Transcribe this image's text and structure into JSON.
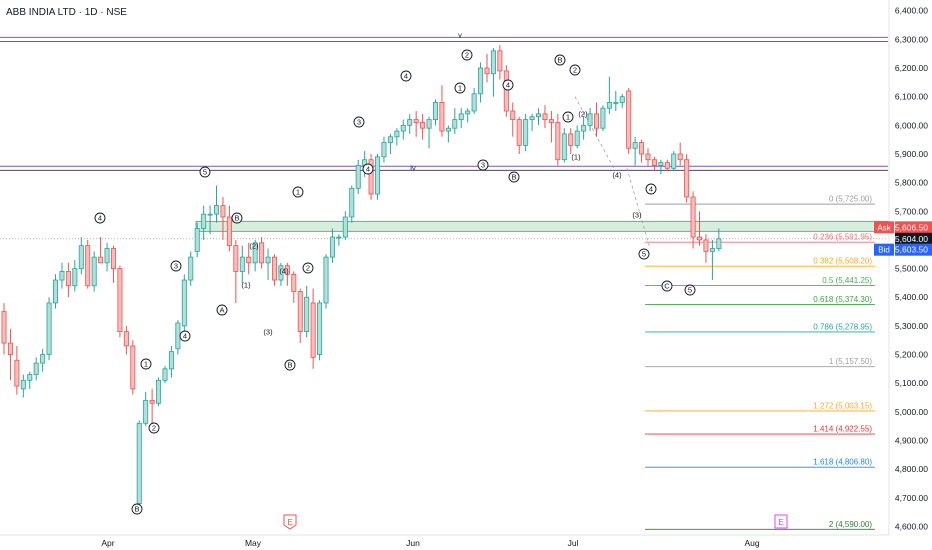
{
  "header": {
    "title": "ABB INDIA LTD · 1D · NSE"
  },
  "colors": {
    "up": "#26a69a",
    "up_fill": "#b2dfdb",
    "down": "#ef5350",
    "down_fill": "#f7bcbc",
    "resistance": "#7e57c2",
    "zone": "#b8e0c4"
  },
  "chart_data": {
    "type": "candlestick",
    "title": "ABB INDIA LTD · 1D · NSE",
    "yaxis": {
      "min": 4560,
      "max": 6420,
      "ticks": [
        "6,400.00",
        "6,300.00",
        "6,200.00",
        "6,100.00",
        "6,000.00",
        "5,900.00",
        "5,800.00",
        "5,700.00",
        "5,600.00",
        "5,500.00",
        "5,400.00",
        "5,300.00",
        "5,200.00",
        "5,100.00",
        "5,000.00",
        "4,900.00",
        "4,800.00",
        "4,700.00",
        "4,600.00"
      ]
    },
    "xaxis": {
      "labels": [
        "Apr",
        "May",
        "Jun",
        "Jul",
        "Aug"
      ]
    },
    "candles": [
      [
        5350,
        5380,
        5200,
        5240
      ],
      [
        5240,
        5290,
        5110,
        5200
      ],
      [
        5180,
        5230,
        5060,
        5090
      ],
      [
        5080,
        5130,
        5050,
        5110
      ],
      [
        5110,
        5140,
        5080,
        5130
      ],
      [
        5130,
        5190,
        5110,
        5170
      ],
      [
        5170,
        5220,
        5140,
        5200
      ],
      [
        5200,
        5400,
        5180,
        5380
      ],
      [
        5380,
        5480,
        5360,
        5460
      ],
      [
        5460,
        5520,
        5430,
        5490
      ],
      [
        5490,
        5520,
        5400,
        5440
      ],
      [
        5440,
        5530,
        5420,
        5500
      ],
      [
        5500,
        5610,
        5480,
        5580
      ],
      [
        5580,
        5600,
        5430,
        5440
      ],
      [
        5440,
        5560,
        5420,
        5540
      ],
      [
        5540,
        5610,
        5520,
        5520
      ],
      [
        5520,
        5590,
        5490,
        5570
      ],
      [
        5570,
        5580,
        5450,
        5500
      ],
      [
        5500,
        5510,
        5260,
        5280
      ],
      [
        5280,
        5300,
        5200,
        5230
      ],
      [
        5230,
        5250,
        5060,
        5080
      ],
      [
        4680,
        4970,
        4670,
        4960
      ],
      [
        4960,
        5070,
        4950,
        5040
      ],
      [
        5040,
        5080,
        4960,
        5030
      ],
      [
        5030,
        5120,
        5020,
        5110
      ],
      [
        5110,
        5160,
        5100,
        5150
      ],
      [
        5150,
        5230,
        5120,
        5210
      ],
      [
        5220,
        5320,
        5200,
        5310
      ],
      [
        5300,
        5480,
        5280,
        5460
      ],
      [
        5460,
        5560,
        5440,
        5540
      ],
      [
        5560,
        5660,
        5540,
        5640
      ],
      [
        5640,
        5720,
        5600,
        5690
      ],
      [
        5690,
        5720,
        5620,
        5690
      ],
      [
        5690,
        5790,
        5660,
        5720
      ],
      [
        5720,
        5750,
        5600,
        5680
      ],
      [
        5680,
        5720,
        5560,
        5580
      ],
      [
        5580,
        5600,
        5380,
        5490
      ],
      [
        5490,
        5580,
        5450,
        5540
      ],
      [
        5540,
        5590,
        5480,
        5520
      ],
      [
        5520,
        5600,
        5490,
        5590
      ],
      [
        5590,
        5610,
        5500,
        5520
      ],
      [
        5520,
        5570,
        5460,
        5540
      ],
      [
        5540,
        5550,
        5440,
        5460
      ],
      [
        5460,
        5520,
        5440,
        5510
      ],
      [
        5510,
        5520,
        5440,
        5480
      ],
      [
        5480,
        5490,
        5380,
        5420
      ],
      [
        5420,
        5430,
        5240,
        5280
      ],
      [
        5280,
        5440,
        5260,
        5400
      ],
      [
        5380,
        5430,
        5150,
        5190
      ],
      [
        5200,
        5390,
        5180,
        5380
      ],
      [
        5380,
        5550,
        5360,
        5540
      ],
      [
        5540,
        5640,
        5520,
        5610
      ],
      [
        5610,
        5620,
        5580,
        5610
      ],
      [
        5610,
        5700,
        5600,
        5680
      ],
      [
        5680,
        5790,
        5660,
        5780
      ],
      [
        5780,
        5880,
        5760,
        5860
      ],
      [
        5860,
        5910,
        5820,
        5880
      ],
      [
        5880,
        5900,
        5740,
        5760
      ],
      [
        5760,
        5900,
        5740,
        5890
      ],
      [
        5890,
        5960,
        5870,
        5940
      ],
      [
        5940,
        5970,
        5900,
        5960
      ],
      [
        5960,
        5990,
        5930,
        5980
      ],
      [
        5980,
        6020,
        5950,
        6000
      ],
      [
        6000,
        6040,
        5970,
        6020
      ],
      [
        6020,
        6050,
        5960,
        6010
      ],
      [
        6010,
        6040,
        5950,
        5990
      ],
      [
        5990,
        6030,
        5920,
        6020
      ],
      [
        6020,
        6090,
        6000,
        6080
      ],
      [
        6080,
        6140,
        5960,
        5980
      ],
      [
        5980,
        6000,
        5940,
        5990
      ],
      [
        5990,
        6060,
        5970,
        6020
      ],
      [
        6020,
        6060,
        5990,
        6040
      ],
      [
        6040,
        6060,
        6010,
        6050
      ],
      [
        6050,
        6130,
        6040,
        6110
      ],
      [
        6110,
        6220,
        6080,
        6200
      ],
      [
        6200,
        6250,
        6150,
        6180
      ],
      [
        6180,
        6270,
        6100,
        6260
      ],
      [
        6260,
        6280,
        6160,
        6190
      ],
      [
        6190,
        6210,
        6030,
        6050
      ],
      [
        6050,
        6080,
        5960,
        6020
      ],
      [
        6020,
        6030,
        5900,
        5930
      ],
      [
        5930,
        6040,
        5910,
        6020
      ],
      [
        6020,
        6040,
        5980,
        6030
      ],
      [
        6030,
        6060,
        6000,
        6040
      ],
      [
        6040,
        6070,
        5990,
        6020
      ],
      [
        6020,
        6050,
        5940,
        6010
      ],
      [
        6010,
        6040,
        5860,
        5880
      ],
      [
        5880,
        5990,
        5870,
        5970
      ],
      [
        5970,
        5990,
        5900,
        5930
      ],
      [
        5930,
        6000,
        5920,
        5980
      ],
      [
        5980,
        6030,
        5950,
        6000
      ],
      [
        6000,
        6060,
        5980,
        6040
      ],
      [
        6040,
        6080,
        5960,
        5990
      ],
      [
        5990,
        6070,
        5980,
        6060
      ],
      [
        6060,
        6170,
        6040,
        6080
      ],
      [
        6080,
        6120,
        6050,
        6080
      ],
      [
        6080,
        6110,
        6060,
        6100
      ],
      [
        6120,
        6130,
        5900,
        5920
      ],
      [
        5920,
        5960,
        5860,
        5940
      ],
      [
        5940,
        5950,
        5870,
        5900
      ],
      [
        5900,
        5920,
        5860,
        5880
      ],
      [
        5880,
        5890,
        5840,
        5860
      ],
      [
        5860,
        5880,
        5830,
        5870
      ],
      [
        5870,
        5880,
        5840,
        5850
      ],
      [
        5850,
        5910,
        5840,
        5900
      ],
      [
        5900,
        5940,
        5860,
        5880
      ],
      [
        5880,
        5900,
        5730,
        5750
      ],
      [
        5750,
        5770,
        5570,
        5610
      ],
      [
        5610,
        5700,
        5580,
        5600
      ],
      [
        5600,
        5620,
        5520,
        5560
      ],
      [
        5560,
        5600,
        5460,
        5570
      ],
      [
        5570,
        5640,
        5560,
        5604
      ]
    ],
    "resistance_levels": [
      6300,
      5850
    ],
    "resistance_zone": [
      5630,
      5665
    ],
    "previous_close_line": 5604,
    "price_tags": {
      "ask": {
        "label": "Ask",
        "value": "5,606.50"
      },
      "last": {
        "value": "5,604.00"
      },
      "bid": {
        "label": "Bid",
        "value": "5,603.50"
      }
    },
    "fibonacci": [
      {
        "label": "0 (5,725.00)",
        "value": 5725,
        "color": "#9e9e9e"
      },
      {
        "label": "0.236 (5,591.95)",
        "value": 5591.95,
        "color": "#e57373"
      },
      {
        "label": "0.382 (5,508.20)",
        "value": 5508.2,
        "color": "#ffa726"
      },
      {
        "label": "0.5 (5,441.25)",
        "value": 5441.25,
        "color": "#4caf50"
      },
      {
        "label": "0.618 (5,374.30)",
        "value": 5374.3,
        "color": "#43a047"
      },
      {
        "label": "0.786 (5,278.95)",
        "value": 5278.95,
        "color": "#26a69a"
      },
      {
        "label": "1 (5,157.50)",
        "value": 5157.5,
        "color": "#9e9e9e"
      },
      {
        "label": "1.272 (5,003.15)",
        "value": 5003.15,
        "color": "#ffa726"
      },
      {
        "label": "1.414 (4,922.55)",
        "value": 4922.55,
        "color": "#e53935"
      },
      {
        "label": "1.618 (4,806.80)",
        "value": 4806.8,
        "color": "#1e88e5"
      },
      {
        "label": "2 (4,590.00)",
        "value": 4590,
        "color": "#2e7d32"
      }
    ],
    "wave_labels": [
      {
        "text": "4",
        "circled": true
      },
      {
        "text": "B",
        "circled": true
      },
      {
        "text": "1",
        "circled": true
      },
      {
        "text": "2",
        "circled": true
      },
      {
        "text": "3",
        "circled": true
      },
      {
        "text": "4",
        "circled": true
      },
      {
        "text": "5",
        "circled": true
      },
      {
        "text": "B",
        "circled": true
      },
      {
        "text": "(2)",
        "circled": false
      },
      {
        "text": "(1)",
        "circled": false
      },
      {
        "text": "A",
        "circled": true
      },
      {
        "text": "(4)",
        "circled": false
      },
      {
        "text": "(3)",
        "circled": false
      },
      {
        "text": "1",
        "circled": true
      },
      {
        "text": "2",
        "circled": true
      },
      {
        "text": "B",
        "circled": true
      },
      {
        "text": "3",
        "circled": true
      },
      {
        "text": "4",
        "circled": true
      },
      {
        "text": "4",
        "circled": true
      },
      {
        "text": "iv",
        "circled": false
      },
      {
        "text": "1",
        "circled": true
      },
      {
        "text": "2",
        "circled": true
      },
      {
        "text": "v",
        "circled": false
      },
      {
        "text": "4",
        "circled": true
      },
      {
        "text": "3",
        "circled": true
      },
      {
        "text": "B",
        "circled": true
      },
      {
        "text": "B",
        "circled": true
      },
      {
        "text": "2",
        "circled": true
      },
      {
        "text": "1",
        "circled": true
      },
      {
        "text": "(2)",
        "circled": false
      },
      {
        "text": "(1)",
        "circled": false
      },
      {
        "text": "(4)",
        "circled": false
      },
      {
        "text": "4",
        "circled": true
      },
      {
        "text": "(3)",
        "circled": false
      },
      {
        "text": "5",
        "circled": true
      },
      {
        "text": "C",
        "circled": true
      },
      {
        "text": "5",
        "circled": true
      }
    ],
    "event_markers": [
      {
        "text": "E",
        "color": "#ef5350"
      },
      {
        "text": "E",
        "color": "#e040fb"
      }
    ]
  }
}
